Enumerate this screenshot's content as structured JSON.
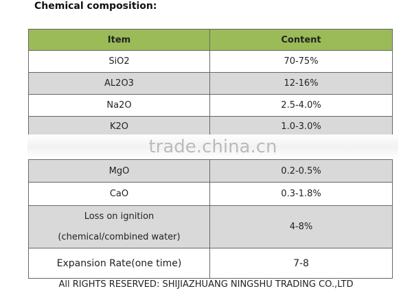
{
  "title": "Chemical composition:",
  "table": {
    "header": [
      "Item",
      "Content"
    ],
    "rows": [
      {
        "item": "SiO2",
        "content": "70-75%"
      },
      {
        "item": "AL2O3",
        "content": "12-16%"
      },
      {
        "item": "Na2O",
        "content": "2.5-4.0%"
      },
      {
        "item": "K2O",
        "content": "1.0-3.0%"
      },
      {
        "item": "MgO",
        "content": "0.2-0.5%"
      },
      {
        "item": "CaO",
        "content": "0.3-1.8%"
      },
      {
        "item": [
          "Loss on ignition",
          "(chemical/combined water)"
        ],
        "content": "4-8%"
      },
      {
        "item": "Expansion Rate(one time)",
        "content": "7-8"
      }
    ]
  },
  "watermark": "trade.china.cn",
  "footer": "All RIGHTS RESERVED:  SHIJIAZHUANG NINGSHU TRADING CO.,LTD"
}
